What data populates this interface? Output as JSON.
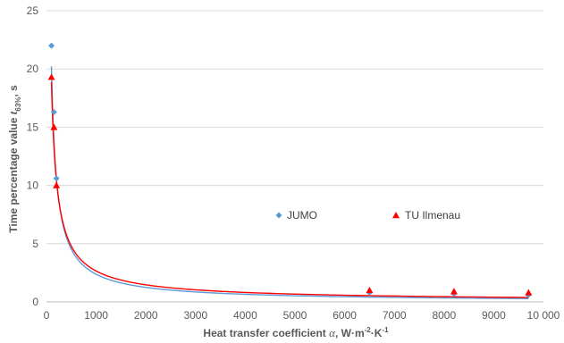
{
  "chart_data": {
    "type": "scatter",
    "title": "",
    "xlabel": {
      "prefix": "Heat transfer coefficient ",
      "symbol": "α",
      "units_main": ", W·m",
      "exp1": "-2",
      "units_mid": "·K",
      "exp2": "-1"
    },
    "ylabel": {
      "prefix": "Time percentage value ",
      "symbol": "t",
      "subscript": "63%",
      "suffix": ", s"
    },
    "xlim": [
      0,
      10000
    ],
    "ylim": [
      0,
      25
    ],
    "x_ticks": [
      0,
      1000,
      2000,
      3000,
      4000,
      5000,
      6000,
      7000,
      8000,
      9000,
      10000
    ],
    "x_tick_labels": [
      "0",
      "1000",
      "2000",
      "3000",
      "4000",
      "5000",
      "6000",
      "7000",
      "8000",
      "9000",
      "10 000"
    ],
    "y_ticks": [
      0,
      5,
      10,
      15,
      20,
      25
    ],
    "y_tick_labels": [
      "0",
      "5",
      "10",
      "15",
      "20",
      "25"
    ],
    "grid": "horizontal",
    "legend_position": "center-right",
    "series": [
      {
        "name": "JUMO",
        "marker": "diamond",
        "color": "#5b9bd5",
        "points": [
          {
            "x": 100,
            "y": 22.0
          },
          {
            "x": 150,
            "y": 16.3
          },
          {
            "x": 200,
            "y": 10.6
          },
          {
            "x": 6500,
            "y": 0.8
          },
          {
            "x": 8200,
            "y": 0.7
          },
          {
            "x": 9700,
            "y": 0.6
          }
        ],
        "trend": {
          "a": 1465,
          "b": -0.93
        }
      },
      {
        "name": "TU Ilmenau",
        "marker": "triangle",
        "color": "#ff0000",
        "points": [
          {
            "x": 100,
            "y": 19.3
          },
          {
            "x": 150,
            "y": 15.0
          },
          {
            "x": 200,
            "y": 10.0
          },
          {
            "x": 6500,
            "y": 1.0
          },
          {
            "x": 8200,
            "y": 0.9
          },
          {
            "x": 9700,
            "y": 0.8
          }
        ],
        "trend": {
          "a": 960,
          "b": -0.853
        }
      }
    ]
  }
}
